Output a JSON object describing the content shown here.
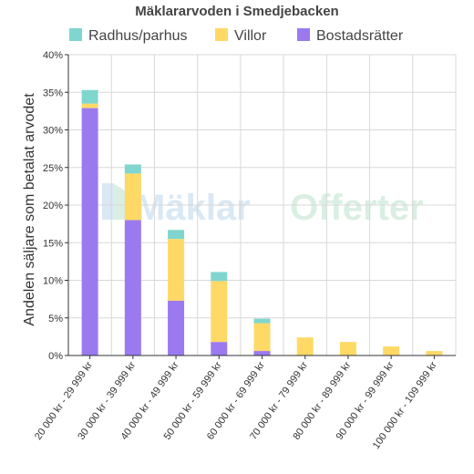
{
  "chart_data": {
    "type": "bar",
    "stacked": true,
    "title": "Mäklararvoden i Smedjebacken",
    "ylabel": "Andelen säljare som betalat arvodet",
    "xlabel": "",
    "ylim": [
      0,
      40
    ],
    "y_ticks": [
      "0%",
      "5%",
      "10%",
      "15%",
      "20%",
      "25%",
      "30%",
      "35%",
      "40%"
    ],
    "grid": true,
    "legend_position": "top",
    "categories": [
      "20 000 kr - 29 999 kr",
      "30 000 kr - 39 999 kr",
      "40 000 kr - 49 999 kr",
      "50 000 kr - 59 999 kr",
      "60 000 kr - 69 999 kr",
      "70 000 kr - 79 999 kr",
      "80 000 kr - 89 999 kr",
      "90 000 kr - 99 999 kr",
      "100 000 kr - 109 999 kr"
    ],
    "series": [
      {
        "name": "Bostadsrätter",
        "color": "#9b7af0",
        "values": [
          32.9,
          18.0,
          7.3,
          1.8,
          0.6,
          0,
          0,
          0,
          0
        ]
      },
      {
        "name": "Villor",
        "color": "#ffd966",
        "values": [
          0.6,
          6.2,
          8.2,
          8.1,
          3.7,
          2.4,
          1.8,
          1.2,
          0.6
        ]
      },
      {
        "name": "Radhus/parhus",
        "color": "#7fd6cf",
        "values": [
          1.8,
          1.2,
          1.2,
          1.2,
          0.6,
          0,
          0,
          0,
          0
        ]
      }
    ],
    "legend_order": [
      "Radhus/parhus",
      "Villor",
      "Bostadsrätter"
    ]
  },
  "watermark": {
    "part1": "Mäklar",
    "part2": "Offerter"
  }
}
